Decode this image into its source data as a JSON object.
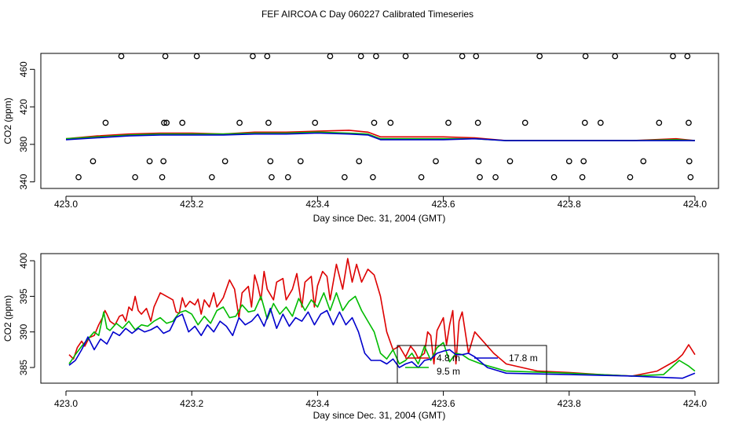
{
  "title": "FEF AIRCOA C  Day 060227  Calibrated Timeseries",
  "chart_data": [
    {
      "type": "scatter",
      "title": "",
      "xlabel": "Day since Dec. 31, 2004 (GMT)",
      "ylabel": "CO2 (ppm)",
      "xlim": [
        423.0,
        424.0
      ],
      "ylim": [
        333,
        477
      ],
      "xticks": [
        "423.0",
        "423.2",
        "423.4",
        "423.6",
        "423.8",
        "424.0"
      ],
      "xtick_values": [
        423.0,
        423.2,
        423.4,
        423.6,
        423.8,
        424.0
      ],
      "yticks": [
        "340",
        "380",
        "420",
        "460"
      ],
      "ytick_values": [
        340,
        380,
        420,
        460
      ],
      "line_series": [
        {
          "name": "4.8 m",
          "color": "#dd0000",
          "x": [
            423.0,
            423.05,
            423.1,
            423.15,
            423.2,
            423.25,
            423.3,
            423.35,
            423.4,
            423.45,
            423.48,
            423.5,
            423.55,
            423.6,
            423.65,
            423.7,
            423.8,
            423.9,
            423.97,
            424.0
          ],
          "values": [
            386,
            389,
            391,
            392,
            392,
            391,
            393,
            393,
            394,
            395,
            393,
            388,
            388,
            388,
            387,
            384,
            384,
            384,
            386,
            384
          ]
        },
        {
          "name": "9.5 m",
          "color": "#00bb00",
          "x": [
            423.0,
            423.05,
            423.1,
            423.15,
            423.2,
            423.25,
            423.3,
            423.35,
            423.4,
            423.45,
            423.48,
            423.5,
            423.55,
            423.6,
            423.65,
            423.7,
            423.8,
            423.9,
            423.97,
            424.0
          ],
          "values": [
            386,
            388,
            390,
            391,
            391,
            391,
            392,
            392,
            393,
            392,
            391,
            386,
            386,
            386,
            386,
            384,
            384,
            384,
            385,
            384
          ]
        },
        {
          "name": "17.8 m",
          "color": "#0000cc",
          "x": [
            423.0,
            423.05,
            423.1,
            423.15,
            423.2,
            423.25,
            423.3,
            423.35,
            423.4,
            423.45,
            423.48,
            423.5,
            423.55,
            423.6,
            423.65,
            423.7,
            423.8,
            423.9,
            423.97,
            424.0
          ],
          "values": [
            385,
            387,
            389,
            390,
            390,
            390,
            391,
            391,
            392,
            391,
            390,
            385,
            385,
            385,
            386,
            384,
            384,
            384,
            384,
            384
          ]
        }
      ],
      "points": {
        "x": [
          423.02,
          423.043,
          423.063,
          423.088,
          423.11,
          423.133,
          423.153,
          423.155,
          423.156,
          423.158,
          423.16,
          423.185,
          423.208,
          423.232,
          423.253,
          423.276,
          423.297,
          423.32,
          423.322,
          423.325,
          423.327,
          423.353,
          423.373,
          423.396,
          423.42,
          423.443,
          423.466,
          423.469,
          423.488,
          423.49,
          423.493,
          423.516,
          423.54,
          423.565,
          423.588,
          423.608,
          423.63,
          423.652,
          423.655,
          423.656,
          423.658,
          423.683,
          423.706,
          423.73,
          423.753,
          423.776,
          423.8,
          423.821,
          423.823,
          423.825,
          423.826,
          423.85,
          423.873,
          423.897,
          423.918,
          423.943,
          423.965,
          423.988,
          423.99,
          423.991,
          423.993
        ],
        "values": [
          345,
          362,
          403,
          474,
          345,
          362,
          345,
          362,
          403,
          474,
          403,
          403,
          474,
          345,
          362,
          403,
          474,
          474,
          403,
          362,
          345,
          345,
          362,
          403,
          474,
          345,
          362,
          474,
          345,
          403,
          474,
          403,
          474,
          345,
          362,
          403,
          474,
          474,
          403,
          362,
          345,
          345,
          362,
          403,
          474,
          345,
          362,
          345,
          362,
          403,
          474,
          403,
          474,
          345,
          362,
          403,
          474,
          474,
          403,
          362,
          345
        ]
      }
    },
    {
      "type": "line",
      "title": "",
      "xlabel": "Day since Dec. 31, 2004 (GMT)",
      "ylabel": "CO2 (ppm)",
      "xlim": [
        423.0,
        424.0
      ],
      "ylim": [
        382.8,
        401.0
      ],
      "xticks": [
        "423.0",
        "423.2",
        "423.4",
        "423.6",
        "423.8",
        "424.0"
      ],
      "xtick_values": [
        423.0,
        423.2,
        423.4,
        423.6,
        423.8,
        424.0
      ],
      "yticks": [
        "385",
        "390",
        "395",
        "400"
      ],
      "ytick_values": [
        385,
        390,
        395,
        400
      ],
      "legend_placement": "bottom-center",
      "series": [
        {
          "name": "4.8 m",
          "color": "#dd0000",
          "x": [
            423.005,
            423.012,
            423.018,
            423.025,
            423.03,
            423.037,
            423.045,
            423.052,
            423.058,
            423.062,
            423.065,
            423.07,
            423.078,
            423.085,
            423.09,
            423.095,
            423.1,
            423.105,
            423.11,
            423.115,
            423.12,
            423.128,
            423.135,
            423.14,
            423.15,
            423.16,
            423.17,
            423.175,
            423.18,
            423.185,
            423.19,
            423.197,
            423.205,
            423.21,
            423.215,
            423.22,
            423.228,
            423.235,
            423.24,
            423.25,
            423.26,
            423.268,
            423.275,
            423.28,
            423.29,
            423.295,
            423.3,
            423.305,
            423.31,
            423.315,
            423.32,
            423.33,
            423.335,
            423.345,
            423.35,
            423.36,
            423.367,
            423.375,
            423.38,
            423.39,
            423.395,
            423.4,
            423.408,
            423.415,
            423.42,
            423.43,
            423.44,
            423.448,
            423.455,
            423.462,
            423.47,
            423.48,
            423.49,
            423.5,
            423.51,
            423.52,
            423.53,
            423.54,
            423.548,
            423.555,
            423.56,
            423.57,
            423.575,
            423.58,
            423.585,
            423.59,
            423.6,
            423.605,
            423.61,
            423.615,
            423.62,
            423.625,
            423.63,
            423.64,
            423.65,
            423.66,
            423.68,
            423.7,
            423.75,
            423.8,
            423.85,
            423.9,
            423.94,
            423.96,
            423.97,
            423.98,
            423.99,
            424.0
          ],
          "values": [
            386.8,
            386.2,
            387.8,
            388.7,
            388.0,
            389.2,
            389.5,
            391.0,
            392.0,
            393.0,
            392.5,
            391.5,
            391.0,
            392.2,
            392.4,
            391.5,
            393.5,
            393.0,
            395.0,
            393.0,
            392.5,
            393.3,
            391.5,
            393.5,
            395.5,
            395.0,
            394.5,
            392.8,
            392.6,
            394.8,
            393.5,
            394.3,
            393.8,
            394.6,
            392.5,
            394.5,
            393.5,
            395.5,
            393.5,
            394.8,
            397.3,
            396.0,
            392.0,
            395.5,
            396.4,
            393.5,
            398.0,
            396.5,
            394.5,
            398.5,
            396.0,
            394.5,
            397.0,
            397.5,
            394.5,
            396.0,
            398.2,
            393.5,
            397.0,
            397.8,
            393.5,
            396.5,
            398.5,
            397.8,
            394.5,
            399.5,
            396.0,
            400.3,
            397.0,
            399.5,
            397.0,
            398.8,
            398.0,
            395.0,
            390.0,
            387.5,
            388.0,
            386.5,
            388.0,
            387.2,
            386.3,
            387.0,
            390.0,
            389.5,
            385.5,
            390.2,
            392.0,
            388.2,
            391.0,
            393.0,
            385.5,
            391.5,
            392.8,
            387.0,
            390.0,
            389.0,
            387.0,
            385.5,
            384.5,
            384.3,
            384.0,
            383.8,
            384.5,
            385.5,
            386.0,
            386.8,
            388.2,
            386.8
          ]
        },
        {
          "name": "9.5 m",
          "color": "#00bb00",
          "x": [
            423.005,
            423.015,
            423.025,
            423.035,
            423.045,
            423.052,
            423.06,
            423.065,
            423.07,
            423.08,
            423.09,
            423.1,
            423.11,
            423.12,
            423.13,
            423.14,
            423.15,
            423.16,
            423.17,
            423.18,
            423.19,
            423.2,
            423.21,
            423.22,
            423.23,
            423.24,
            423.25,
            423.26,
            423.27,
            423.28,
            423.29,
            423.3,
            423.31,
            423.32,
            423.33,
            423.34,
            423.35,
            423.36,
            423.37,
            423.38,
            423.39,
            423.4,
            423.41,
            423.42,
            423.43,
            423.44,
            423.45,
            423.46,
            423.47,
            423.48,
            423.49,
            423.5,
            423.51,
            423.52,
            423.53,
            423.54,
            423.55,
            423.56,
            423.57,
            423.58,
            423.59,
            423.6,
            423.61,
            423.62,
            423.63,
            423.64,
            423.66,
            423.7,
            423.8,
            423.9,
            423.95,
            423.96,
            423.975,
            423.99,
            424.0
          ],
          "values": [
            385.5,
            386.8,
            388.0,
            389.0,
            390.0,
            389.5,
            392.8,
            390.5,
            390.2,
            391.2,
            390.5,
            391.5,
            390.3,
            391.0,
            390.8,
            391.5,
            392.0,
            391.2,
            391.5,
            392.7,
            393.0,
            392.5,
            391.0,
            392.2,
            391.2,
            393.0,
            393.5,
            392.0,
            392.2,
            393.8,
            392.8,
            393.0,
            395.0,
            391.8,
            394.0,
            392.5,
            393.5,
            392.2,
            394.7,
            393.0,
            394.5,
            393.5,
            395.5,
            393.0,
            395.5,
            393.0,
            394.3,
            395.0,
            393.0,
            391.5,
            390.0,
            387.0,
            386.2,
            387.5,
            385.5,
            386.0,
            387.0,
            385.5,
            388.0,
            386.0,
            387.8,
            388.5,
            385.8,
            387.0,
            386.8,
            386.2,
            385.5,
            384.5,
            384.2,
            383.8,
            384.0,
            384.8,
            386.0,
            385.2,
            384.5
          ]
        },
        {
          "name": "17.8 m",
          "color": "#0000cc",
          "x": [
            423.005,
            423.015,
            423.025,
            423.035,
            423.045,
            423.055,
            423.065,
            423.075,
            423.085,
            423.095,
            423.105,
            423.115,
            423.125,
            423.135,
            423.145,
            423.155,
            423.165,
            423.175,
            423.185,
            423.195,
            423.205,
            423.215,
            423.225,
            423.235,
            423.245,
            423.255,
            423.265,
            423.275,
            423.285,
            423.295,
            423.305,
            423.315,
            423.325,
            423.335,
            423.345,
            423.355,
            423.365,
            423.375,
            423.385,
            423.395,
            423.405,
            423.415,
            423.425,
            423.435,
            423.445,
            423.455,
            423.465,
            423.475,
            423.485,
            423.5,
            423.51,
            423.52,
            423.53,
            423.54,
            423.55,
            423.56,
            423.57,
            423.58,
            423.59,
            423.6,
            423.61,
            423.62,
            423.63,
            423.64,
            423.65,
            423.67,
            423.7,
            423.8,
            423.9,
            423.95,
            423.98,
            424.0
          ],
          "values": [
            385.3,
            386.0,
            387.5,
            389.3,
            387.5,
            389.0,
            388.3,
            390.0,
            389.5,
            390.5,
            389.8,
            390.5,
            390.0,
            390.3,
            390.8,
            389.8,
            390.2,
            392.0,
            392.5,
            390.0,
            390.8,
            389.5,
            391.0,
            390.0,
            391.5,
            390.8,
            389.5,
            392.0,
            391.0,
            391.5,
            392.5,
            390.8,
            393.3,
            390.5,
            392.5,
            390.8,
            392.0,
            391.5,
            392.8,
            391.0,
            392.5,
            393.0,
            391.0,
            392.8,
            391.0,
            392.0,
            390.0,
            387.0,
            386.0,
            386.0,
            385.5,
            386.2,
            385.0,
            385.5,
            385.8,
            385.0,
            386.0,
            386.2,
            387.0,
            387.3,
            387.5,
            386.8,
            386.8,
            387.0,
            386.5,
            385.0,
            384.2,
            384.0,
            383.8,
            383.6,
            383.5,
            384.2
          ]
        }
      ]
    }
  ]
}
